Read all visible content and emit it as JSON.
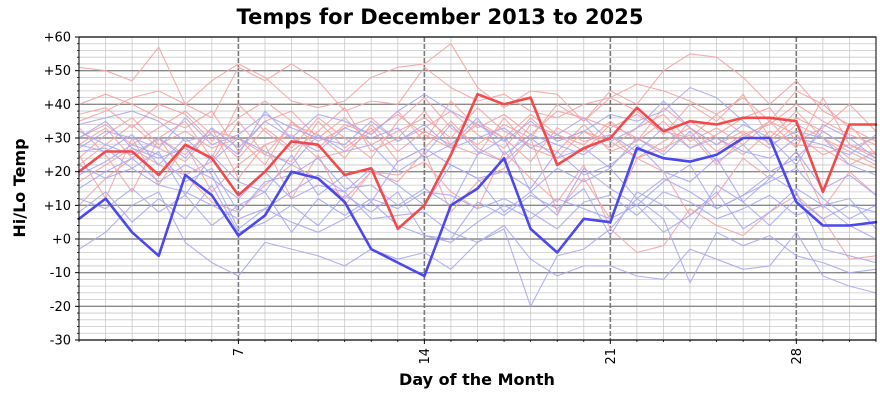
{
  "chart_data": {
    "type": "line",
    "title": "Temps for December 2013 to 2025",
    "xlabel": "Day of the Month",
    "ylabel": "Hi/Lo Temp",
    "xlim": [
      1,
      31
    ],
    "ylim": [
      -30,
      60
    ],
    "x_ticks": [
      7,
      14,
      21,
      28
    ],
    "x_tick_labels": [
      "7",
      "14",
      "21",
      "28"
    ],
    "y_ticks": [
      -30,
      -20,
      -10,
      0,
      10,
      20,
      30,
      40,
      50,
      60
    ],
    "y_tick_labels": [
      "-30",
      "-20",
      "-10",
      "+0",
      "+10",
      "+20",
      "+30",
      "+40",
      "+50",
      "+60"
    ],
    "grid": true,
    "colors": {
      "high": "#f24a4a",
      "low": "#4a48ee",
      "high_faint": "#f5a3a3",
      "low_faint": "#a9a9f3",
      "grid_major": "#8a8a8a",
      "grid_minor": "#c9c9c9"
    },
    "x": [
      1,
      2,
      3,
      4,
      5,
      6,
      7,
      8,
      9,
      10,
      11,
      12,
      13,
      14,
      15,
      16,
      17,
      18,
      19,
      20,
      21,
      22,
      23,
      24,
      25,
      26,
      27,
      28,
      29,
      30,
      31
    ],
    "series": [
      {
        "role": "high",
        "highlight": true,
        "values": [
          20,
          26,
          26,
          19,
          28,
          24,
          13,
          20,
          29,
          28,
          19,
          21,
          3,
          10,
          25,
          43,
          40,
          42,
          22,
          27,
          30,
          39,
          32,
          35,
          34,
          36,
          36,
          35,
          14,
          34,
          34
        ]
      },
      {
        "role": "low",
        "highlight": true,
        "values": [
          6,
          12,
          2,
          -5,
          19,
          13,
          1,
          7,
          20,
          18,
          11,
          -3,
          -7,
          -11,
          10,
          15,
          24,
          3,
          -4,
          6,
          5,
          27,
          24,
          23,
          25,
          30,
          30,
          11,
          4,
          4,
          5
        ]
      },
      {
        "role": "high",
        "highlight": false,
        "values": [
          51,
          50,
          47,
          57,
          40,
          47,
          52,
          48,
          41,
          39,
          41,
          48,
          51,
          52,
          58,
          45,
          39,
          44,
          43,
          35,
          44,
          40,
          50,
          55,
          54,
          48,
          40,
          47,
          38,
          34,
          25
        ]
      },
      {
        "role": "high",
        "highlight": false,
        "values": [
          35,
          38,
          42,
          44,
          40,
          36,
          51,
          47,
          52,
          47,
          38,
          41,
          40,
          51,
          45,
          41,
          43,
          38,
          36,
          40,
          42,
          46,
          44,
          41,
          37,
          42,
          35,
          44,
          40,
          33,
          29
        ]
      },
      {
        "role": "high",
        "highlight": false,
        "values": [
          30,
          34,
          28,
          33,
          38,
          31,
          24,
          33,
          27,
          36,
          30,
          24,
          35,
          42,
          33,
          28,
          34,
          30,
          40,
          35,
          42,
          38,
          31,
          40,
          35,
          43,
          30,
          38,
          30,
          26,
          22
        ]
      },
      {
        "role": "high",
        "highlight": false,
        "values": [
          24,
          31,
          36,
          28,
          32,
          27,
          30,
          22,
          35,
          29,
          33,
          36,
          29,
          33,
          38,
          31,
          27,
          36,
          29,
          32,
          27,
          33,
          37,
          29,
          33,
          28,
          35,
          31,
          25,
          28,
          24
        ]
      },
      {
        "role": "high",
        "highlight": false,
        "values": [
          33,
          25,
          14,
          30,
          25,
          33,
          18,
          28,
          31,
          24,
          26,
          32,
          37,
          31,
          27,
          35,
          30,
          23,
          33,
          29,
          31,
          24,
          29,
          33,
          28,
          32,
          27,
          34,
          30,
          24,
          21
        ]
      },
      {
        "role": "high",
        "highlight": false,
        "values": [
          40,
          43,
          40,
          36,
          33,
          38,
          26,
          35,
          38,
          30,
          36,
          28,
          32,
          36,
          30,
          39,
          32,
          28,
          26,
          34,
          26,
          29,
          35,
          27,
          31,
          36,
          39,
          29,
          33,
          40,
          32
        ]
      },
      {
        "role": "high",
        "highlight": false,
        "values": [
          17,
          22,
          27,
          22,
          19,
          23,
          35,
          25,
          23,
          35,
          27,
          33,
          23,
          27,
          35,
          27,
          23,
          34,
          31,
          26,
          34,
          30,
          26,
          35,
          30,
          25,
          32,
          28,
          27,
          22,
          26
        ]
      },
      {
        "role": "high",
        "highlight": false,
        "values": [
          37,
          39,
          33,
          40,
          37,
          29,
          36,
          41,
          35,
          27,
          34,
          31,
          38,
          29,
          41,
          33,
          37,
          31,
          38,
          36,
          33,
          37,
          32,
          30,
          37,
          31,
          34,
          40,
          35,
          31,
          28
        ]
      },
      {
        "role": "high",
        "highlight": false,
        "values": [
          25,
          12,
          30,
          16,
          28,
          14,
          22,
          28,
          12,
          25,
          10,
          20,
          17,
          26,
          8,
          17,
          21,
          30,
          8,
          18,
          6,
          24,
          20,
          7,
          13,
          24,
          18,
          26,
          9,
          20,
          13
        ]
      },
      {
        "role": "high",
        "highlight": false,
        "values": [
          28,
          33,
          24,
          30,
          35,
          24,
          40,
          32,
          26,
          32,
          39,
          26,
          30,
          38,
          28,
          34,
          30,
          37,
          31,
          28,
          35,
          29,
          39,
          33,
          26,
          31,
          29,
          36,
          32,
          27,
          30
        ]
      },
      {
        "role": "high",
        "highlight": false,
        "values": [
          22,
          28,
          34,
          27,
          23,
          32,
          30,
          25,
          34,
          31,
          24,
          34,
          26,
          32,
          28,
          25,
          36,
          27,
          24,
          32,
          29,
          24,
          27,
          31,
          22,
          30,
          35,
          27,
          42,
          28,
          25
        ]
      },
      {
        "role": "high",
        "highlight": false,
        "values": [
          10,
          18,
          24,
          30,
          19,
          11,
          8,
          16,
          22,
          18,
          12,
          20,
          19,
          23,
          14,
          9,
          26,
          18,
          11,
          22,
          3,
          -4,
          -2,
          9,
          4,
          1,
          8,
          13,
          6,
          -6,
          -5
        ]
      },
      {
        "role": "low",
        "highlight": false,
        "values": [
          -3,
          2,
          10,
          14,
          -1,
          -7,
          -11,
          -1,
          -3,
          -5,
          -8,
          -3,
          -6,
          -4,
          -9,
          -1,
          4,
          -6,
          -11,
          -8,
          -8,
          -11,
          -12,
          -3,
          -6,
          -9,
          -8,
          2,
          -11,
          -14,
          -16
        ]
      },
      {
        "role": "low",
        "highlight": false,
        "values": [
          26,
          27,
          21,
          16,
          14,
          10,
          6,
          9,
          14,
          19,
          14,
          6,
          7,
          8,
          2,
          -1,
          3,
          -20,
          -5,
          -3,
          3,
          12,
          6,
          -13,
          2,
          -2,
          1,
          -5,
          -7,
          -10,
          -9
        ]
      },
      {
        "role": "low",
        "highlight": false,
        "values": [
          30,
          35,
          27,
          24,
          27,
          19,
          3,
          9,
          5,
          2,
          6,
          11,
          4,
          1,
          -1,
          5,
          10,
          6,
          12,
          9,
          6,
          10,
          2,
          7,
          14,
          3,
          8,
          15,
          10,
          4,
          0
        ]
      },
      {
        "role": "low",
        "highlight": false,
        "values": [
          15,
          20,
          24,
          17,
          22,
          18,
          12,
          20,
          12,
          16,
          14,
          21,
          16,
          10,
          22,
          18,
          8,
          14,
          7,
          21,
          15,
          10,
          17,
          22,
          9,
          13,
          19,
          14,
          -3,
          -5,
          -7
        ]
      },
      {
        "role": "low",
        "highlight": false,
        "values": [
          22,
          18,
          21,
          26,
          13,
          25,
          17,
          14,
          25,
          13,
          19,
          11,
          23,
          27,
          22,
          18,
          20,
          15,
          26,
          19,
          22,
          28,
          20,
          17,
          24,
          11,
          18,
          26,
          15,
          19,
          13
        ]
      },
      {
        "role": "low",
        "highlight": false,
        "values": [
          28,
          26,
          31,
          22,
          30,
          23,
          30,
          26,
          22,
          31,
          26,
          28,
          20,
          25,
          34,
          26,
          23,
          30,
          24,
          27,
          21,
          30,
          25,
          32,
          23,
          28,
          20,
          24,
          32,
          27,
          23
        ]
      },
      {
        "role": "low",
        "highlight": false,
        "values": [
          32,
          28,
          25,
          30,
          24,
          33,
          27,
          35,
          30,
          26,
          33,
          30,
          33,
          24,
          28,
          36,
          25,
          31,
          28,
          25,
          31,
          26,
          33,
          27,
          30,
          26,
          24,
          30,
          28,
          25,
          31
        ]
      },
      {
        "role": "low",
        "highlight": false,
        "values": [
          27,
          32,
          30,
          27,
          36,
          28,
          31,
          37,
          33,
          30,
          28,
          35,
          29,
          34,
          27,
          30,
          33,
          27,
          31,
          36,
          29,
          33,
          41,
          33,
          28,
          34,
          30,
          22,
          34,
          30,
          24
        ]
      },
      {
        "role": "low",
        "highlight": false,
        "values": [
          34,
          36,
          38,
          35,
          29,
          31,
          25,
          38,
          30,
          37,
          35,
          31,
          38,
          43,
          38,
          34,
          29,
          35,
          29,
          32,
          37,
          35,
          38,
          45,
          42,
          35,
          28,
          32,
          30,
          22,
          19
        ]
      },
      {
        "role": "low",
        "highlight": false,
        "values": [
          19,
          23,
          28,
          25,
          17,
          21,
          8,
          17,
          19,
          24,
          15,
          16,
          10,
          15,
          10,
          25,
          30,
          14,
          21,
          17,
          21,
          12,
          18,
          14,
          9,
          13,
          17,
          21,
          12,
          6,
          10
        ]
      },
      {
        "role": "low",
        "highlight": false,
        "values": [
          8,
          14,
          5,
          12,
          6,
          16,
          2,
          5,
          10,
          4,
          13,
          8,
          14,
          1,
          0,
          11,
          7,
          13,
          9,
          15,
          1,
          14,
          10,
          3,
          16,
          11,
          4,
          12,
          6,
          10,
          8
        ]
      },
      {
        "role": "low",
        "highlight": false,
        "values": [
          12,
          9,
          15,
          8,
          13,
          4,
          10,
          14,
          2,
          12,
          7,
          12,
          9,
          14,
          13,
          9,
          12,
          8,
          3,
          11,
          13,
          7,
          14,
          11,
          6,
          9,
          13,
          7,
          10,
          12,
          3
        ]
      }
    ]
  }
}
